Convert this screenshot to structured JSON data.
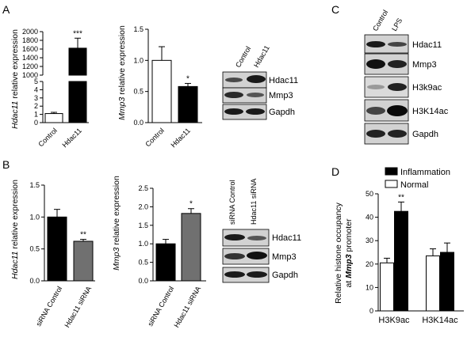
{
  "panel_letters": [
    "A",
    "B",
    "C",
    "D"
  ],
  "colors": {
    "black": "#000000",
    "white": "#ffffff",
    "gray": "#707070",
    "blot_bg": "#d2d2d2"
  },
  "chart_data": [
    {
      "id": "A1",
      "type": "bar",
      "ylabel_gene": "Hdac11",
      "ylabel_rest": " relative expression",
      "categories": [
        "Control",
        "Hdac11"
      ],
      "values": [
        1.1,
        1620
      ],
      "errors": [
        0.15,
        230
      ],
      "ylim": [
        0,
        2000
      ],
      "broken_axis": {
        "lower": [
          0,
          5
        ],
        "upper": [
          1000,
          2000
        ]
      },
      "yticks_lower": [
        "0",
        "1",
        "2",
        "3",
        "4",
        "5"
      ],
      "yticks_upper": [
        "1000",
        "1200",
        "1400",
        "1600",
        "1800",
        "2000"
      ],
      "colors": [
        "#ffffff",
        "#000000"
      ],
      "significance": [
        "",
        "***"
      ]
    },
    {
      "id": "A2",
      "type": "bar",
      "ylabel_gene": "Mmp3",
      "ylabel_rest": " relative expression",
      "categories": [
        "Control",
        "Hdac11"
      ],
      "values": [
        1.0,
        0.58
      ],
      "errors": [
        0.22,
        0.05
      ],
      "ylim": [
        0,
        1.5
      ],
      "yticks": [
        "0.0",
        "0.5",
        "1.0",
        "1.5"
      ],
      "colors": [
        "#ffffff",
        "#000000"
      ],
      "significance": [
        "",
        "*"
      ]
    },
    {
      "id": "B1",
      "type": "bar",
      "ylabel_gene": "Hdac11",
      "ylabel_rest": " relative expression",
      "categories": [
        "siRNA Control",
        "Hdac11 siRNA"
      ],
      "values": [
        1.0,
        0.62
      ],
      "errors": [
        0.12,
        0.03
      ],
      "ylim": [
        0,
        1.5
      ],
      "yticks": [
        "0.0",
        "0.5",
        "1.0",
        "1.5"
      ],
      "colors": [
        "#000000",
        "#707070"
      ],
      "significance": [
        "",
        "**"
      ]
    },
    {
      "id": "B2",
      "type": "bar",
      "ylabel_gene": "Mmp3",
      "ylabel_rest": " relative expression",
      "categories": [
        "siRNA Control",
        "Hdac11 siRNA"
      ],
      "values": [
        1.0,
        1.82
      ],
      "errors": [
        0.12,
        0.13
      ],
      "ylim": [
        0,
        2.5
      ],
      "yticks": [
        "0.0",
        "0.5",
        "1.0",
        "1.5",
        "2.0",
        "2.5"
      ],
      "colors": [
        "#000000",
        "#707070"
      ],
      "significance": [
        "",
        "*"
      ]
    },
    {
      "id": "D",
      "type": "bar",
      "ylabel_line1": "Relative histone occupancy",
      "ylabel_line2_pre": "at ",
      "ylabel_line2_gene": "Mmp3",
      "ylabel_line2_post": " promoter",
      "categories": [
        "H3K9ac",
        "H3K14ac"
      ],
      "series": [
        {
          "name": "Normal",
          "values": [
            20.5,
            23.5
          ],
          "errors": [
            2,
            3
          ],
          "color": "#ffffff"
        },
        {
          "name": "Inflammation",
          "values": [
            42.5,
            25
          ],
          "errors": [
            4,
            4
          ],
          "color": "#000000"
        }
      ],
      "ylim": [
        0,
        50
      ],
      "yticks": [
        "0",
        "10",
        "20",
        "30",
        "40",
        "50"
      ],
      "significance": [
        [
          "",
          "**"
        ],
        [
          "",
          ""
        ]
      ],
      "legend": "top"
    }
  ],
  "blots": {
    "A": {
      "lanes": [
        "Control",
        "Hdac11"
      ],
      "rows": [
        "Hdac11",
        "Mmp3",
        "Gapdh"
      ]
    },
    "B": {
      "lanes": [
        "siRNA Control",
        "Hdac11 siRNA"
      ],
      "rows": [
        "Hdac11",
        "Mmp3",
        "Gapdh"
      ]
    },
    "C": {
      "lanes": [
        "Control",
        "LPS"
      ],
      "rows": [
        "Hdac11",
        "Mmp3",
        "H3k9ac",
        "H3K14ac",
        "Gapdh"
      ]
    }
  }
}
